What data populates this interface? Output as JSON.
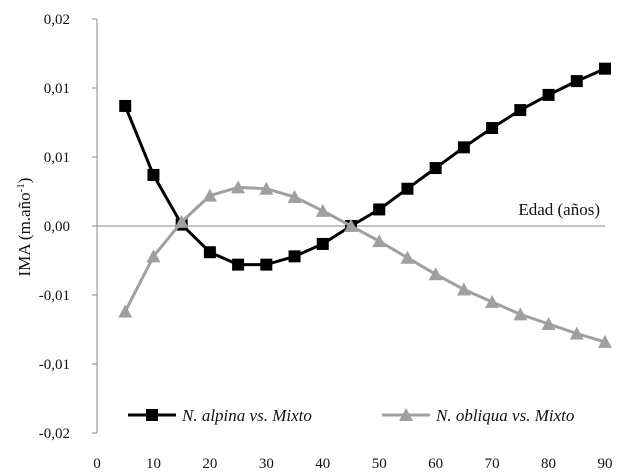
{
  "chart_data": {
    "type": "line",
    "xlabel": "Edad (años)",
    "ylabel": {
      "main": "IMA (m.año",
      "sup": "-1",
      "close": ")"
    },
    "xlim": [
      0,
      90
    ],
    "ylim": [
      -0.015,
      0.015
    ],
    "x_ticks": [
      0,
      10,
      20,
      30,
      40,
      50,
      60,
      70,
      80,
      90
    ],
    "x_tick_labels": [
      "0",
      "10",
      "20",
      "30",
      "40",
      "50",
      "60",
      "70",
      "80",
      "90"
    ],
    "y_ticks": [
      0.015,
      0.01,
      0.005,
      0,
      -0.005,
      -0.01,
      -0.015
    ],
    "y_tick_labels": [
      "0,02",
      "0,01",
      "0,01",
      "0,00",
      "-0,01",
      "-0,01",
      "-0,02"
    ],
    "grid": false,
    "legend_position": "bottom",
    "x": [
      5,
      10,
      15,
      20,
      25,
      30,
      35,
      40,
      45,
      50,
      55,
      60,
      65,
      70,
      75,
      80,
      85,
      90
    ],
    "series": [
      {
        "name_italic": "N. alpina",
        "name_rest": " vs. Mixto",
        "color": "#000000",
        "marker": "square",
        "values": [
          0.0087,
          0.0037,
          0.0001,
          -0.0019,
          -0.0028,
          -0.0028,
          -0.0022,
          -0.0013,
          0.0,
          0.0012,
          0.0027,
          0.0042,
          0.0057,
          0.0071,
          0.0084,
          0.0095,
          0.0105,
          0.0114
        ]
      },
      {
        "name_italic": "N. obliqua vs. Mixto",
        "name_rest": "",
        "color": "#a0a0a0",
        "marker": "triangle",
        "values": [
          -0.0062,
          -0.0022,
          0.0003,
          0.0022,
          0.0028,
          0.0027,
          0.0021,
          0.0011,
          0.0,
          -0.0011,
          -0.0023,
          -0.0035,
          -0.0046,
          -0.0055,
          -0.0064,
          -0.0071,
          -0.0078,
          -0.0084
        ]
      }
    ]
  }
}
